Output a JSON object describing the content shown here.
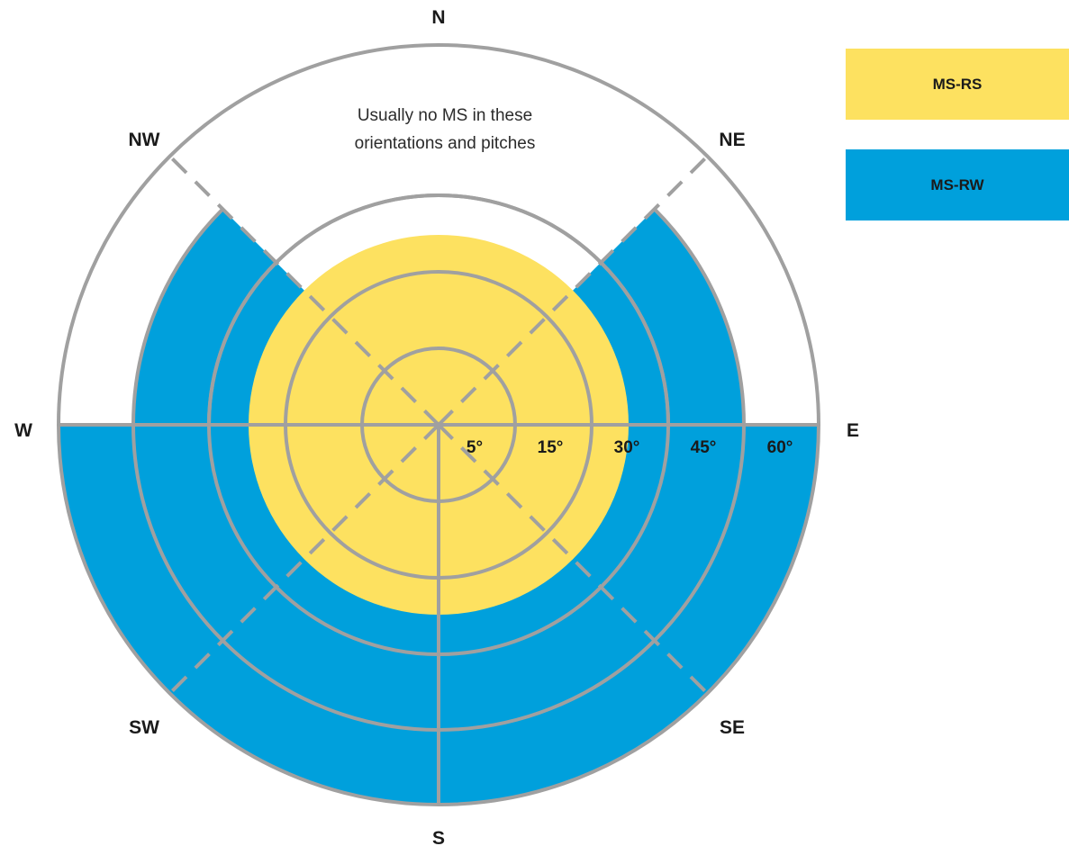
{
  "compass": {
    "n": "N",
    "ne": "NE",
    "e": "E",
    "se": "SE",
    "s": "S",
    "sw": "SW",
    "w": "W",
    "nw": "NW"
  },
  "pitch_labels": [
    "5°",
    "15°",
    "30°",
    "45°",
    "60°"
  ],
  "note": {
    "line1": "Usually no MS in these",
    "line2": "orientations and pitches"
  },
  "legend": [
    {
      "label": "MS-RS",
      "color": "#fde160"
    },
    {
      "label": "MS-RW",
      "color": "#00a0dc"
    }
  ],
  "colors": {
    "rs": "#fde160",
    "rw": "#00a0dc",
    "grid": "#a0a0a0"
  }
}
